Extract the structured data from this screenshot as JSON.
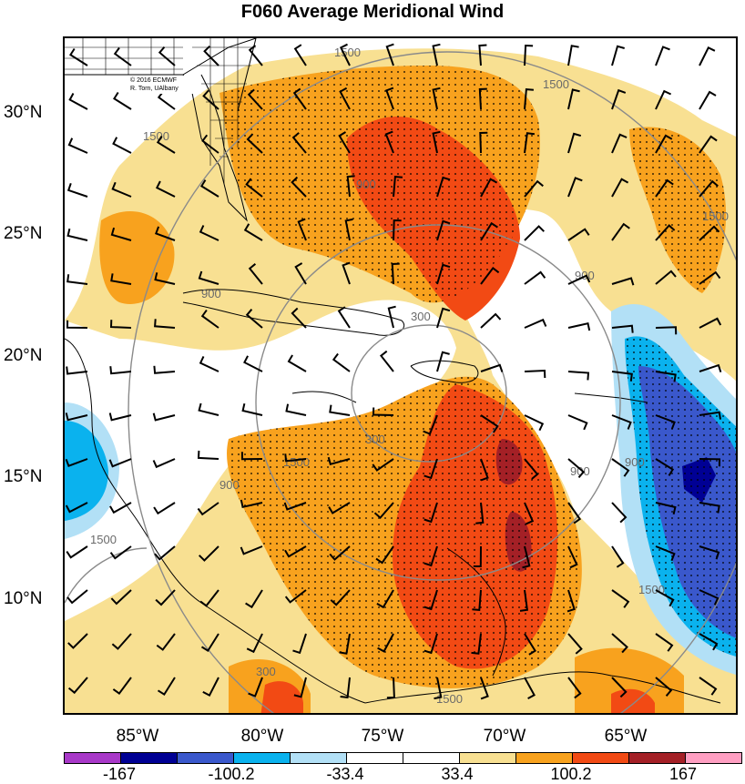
{
  "title": "F060 Average Meridional Wind",
  "credit": {
    "line1": "© 2016 ECMWF",
    "line2": "R. Torn, UAlbany"
  },
  "latitude_labels": [
    "30°N",
    "25°N",
    "20°N",
    "15°N",
    "10°N"
  ],
  "longitude_labels": [
    "85°W",
    "80°W",
    "75°W",
    "70°W",
    "65°W"
  ],
  "contour_labels": [
    "1500",
    "1500",
    "1500",
    "1500",
    "1500",
    "900",
    "900",
    "900",
    "900",
    "900",
    "300",
    "300",
    "300",
    "1500",
    "1500",
    "1500",
    "900"
  ],
  "colorbar": {
    "colors": [
      "#a838c8",
      "#000094",
      "#3a58cc",
      "#0ab2ee",
      "#b2e0f6",
      "#ffffff",
      "#ffffff",
      "#f8e092",
      "#f8a21e",
      "#f24a14",
      "#a42026",
      "#ff9fc2"
    ],
    "labels": [
      "-167",
      "-100.2",
      "-33.4",
      "33.4",
      "100.2",
      "167"
    ]
  },
  "field_colors": {
    "light_yellow": "#f8e092",
    "orange": "#f8a21e",
    "red_orange": "#f24a14",
    "dark_red": "#a42026",
    "light_blue": "#b2e0f6",
    "cyan": "#0ab2ee",
    "medium_blue": "#3a58cc",
    "dark_blue": "#000094"
  }
}
